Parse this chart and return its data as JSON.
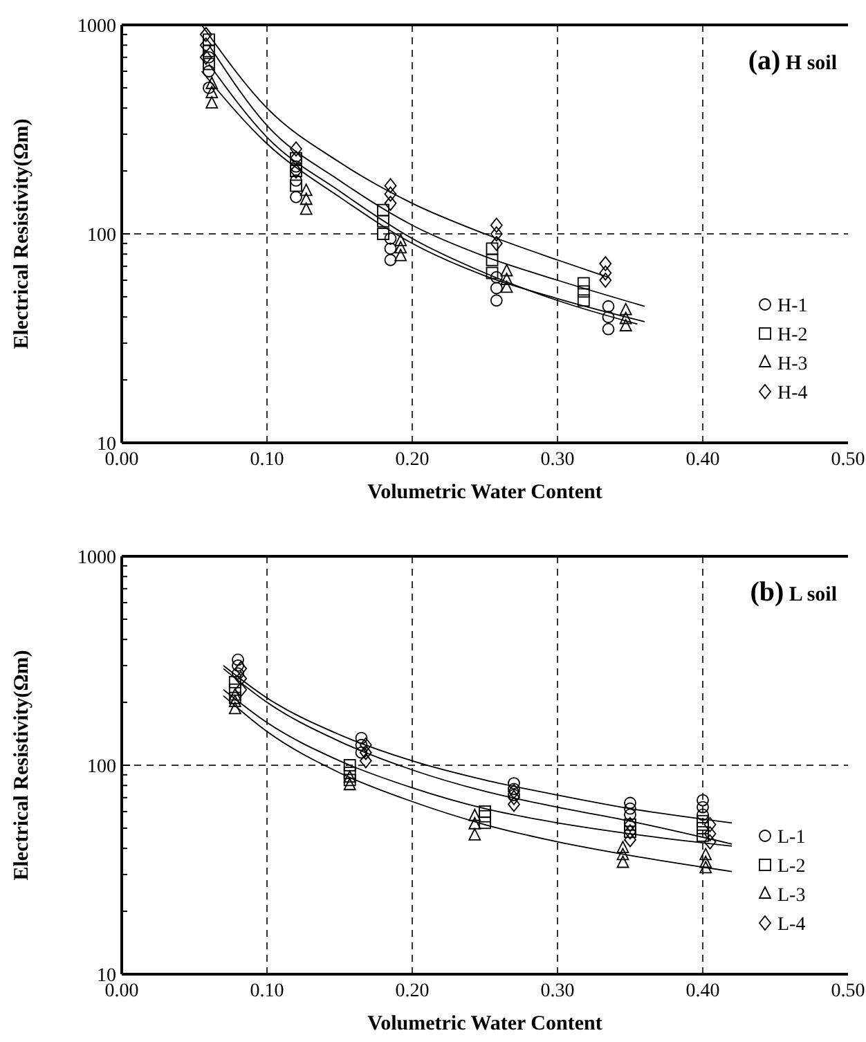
{
  "chart_data": [
    {
      "type": "scatter",
      "annotations": [
        "(a) H soil"
      ],
      "xlabel": "Volumetric Water Content",
      "ylabel": "Electrical Resistivity(Ωm)",
      "log": "y",
      "grid": true,
      "legend": "bottom right",
      "xlim": [
        0,
        0.5
      ],
      "xticks": [
        {
          "value": 0,
          "label": "0.00"
        },
        {
          "value": 0.1,
          "label": "0.10"
        },
        {
          "value": 0.2,
          "label": "0.20"
        },
        {
          "value": 0.3,
          "label": "0.30"
        },
        {
          "value": 0.4,
          "label": "0.40"
        },
        {
          "value": 0.5,
          "label": "0.50"
        }
      ],
      "ylim": [
        10,
        1000
      ],
      "yticks": [
        10,
        {
          "value": 20,
          "label": null
        },
        {
          "value": 30,
          "label": null
        },
        {
          "value": 40,
          "label": null
        },
        {
          "value": 50,
          "label": null
        },
        {
          "value": 60,
          "label": null
        },
        {
          "value": 70,
          "label": null
        },
        {
          "value": 80,
          "label": null
        },
        {
          "value": 90,
          "label": null
        },
        100,
        {
          "value": 200,
          "label": null
        },
        {
          "value": 300,
          "label": null
        },
        {
          "value": 400,
          "label": null
        },
        {
          "value": 500,
          "label": null
        },
        {
          "value": 600,
          "label": null
        },
        {
          "value": 700,
          "label": null
        },
        {
          "value": 800,
          "label": null
        },
        {
          "value": 900,
          "label": null
        },
        1000
      ],
      "series": [
        {
          "name": "H-1",
          "marker": "circle",
          "color": "#000000",
          "x": [
            0.06,
            0.06,
            0.06,
            0.12,
            0.12,
            0.12,
            0.185,
            0.185,
            0.185,
            0.258,
            0.258,
            0.258,
            0.335,
            0.335,
            0.335
          ],
          "values": [
            500,
            600,
            700,
            150,
            180,
            210,
            75,
            85,
            95,
            48,
            55,
            62,
            35,
            40,
            45
          ]
        },
        {
          "name": "H-2",
          "marker": "square",
          "color": "#000000",
          "x": [
            0.06,
            0.06,
            0.06,
            0.12,
            0.12,
            0.12,
            0.18,
            0.18,
            0.18,
            0.255,
            0.255,
            0.255,
            0.318,
            0.318,
            0.318
          ],
          "values": [
            650,
            750,
            850,
            170,
            200,
            230,
            100,
            115,
            130,
            65,
            75,
            85,
            48,
            53,
            58
          ]
        },
        {
          "name": "H-3",
          "marker": "triangle",
          "color": "#000000",
          "x": [
            0.062,
            0.062,
            0.062,
            0.127,
            0.127,
            0.127,
            0.192,
            0.192,
            0.192,
            0.265,
            0.265,
            0.265,
            0.347,
            0.347,
            0.347
          ],
          "values": [
            420,
            470,
            520,
            130,
            145,
            160,
            78,
            85,
            92,
            55,
            60,
            66,
            36,
            39,
            43
          ]
        },
        {
          "name": "H-4",
          "marker": "diamond",
          "color": "#000000",
          "x": [
            0.058,
            0.058,
            0.058,
            0.12,
            0.12,
            0.12,
            0.185,
            0.185,
            0.185,
            0.258,
            0.258,
            0.258,
            0.333,
            0.333,
            0.333
          ],
          "values": [
            700,
            800,
            900,
            200,
            230,
            255,
            140,
            155,
            170,
            90,
            100,
            110,
            60,
            65,
            72
          ]
        },
        {
          "type": "line",
          "color": "#000000",
          "x": [
            0.06,
            0.1,
            0.15,
            0.2,
            0.25,
            0.3,
            0.355
          ],
          "values": [
            650,
            290,
            160,
            95,
            65,
            48,
            37
          ]
        },
        {
          "type": "line",
          "color": "#000000",
          "x": [
            0.06,
            0.1,
            0.15,
            0.2,
            0.25,
            0.3,
            0.36
          ],
          "values": [
            800,
            330,
            180,
            110,
            78,
            60,
            45
          ]
        },
        {
          "type": "line",
          "color": "#000000",
          "x": [
            0.055,
            0.1,
            0.15,
            0.2,
            0.25,
            0.3,
            0.36
          ],
          "values": [
            600,
            270,
            150,
            90,
            63,
            49,
            38
          ]
        },
        {
          "type": "line",
          "color": "#000000",
          "x": [
            0.055,
            0.1,
            0.15,
            0.2,
            0.25,
            0.3,
            0.335
          ],
          "values": [
            1000,
            400,
            220,
            140,
            100,
            75,
            62
          ]
        }
      ]
    },
    {
      "type": "scatter",
      "annotations": [
        "(b) L soil"
      ],
      "xlabel": "Volumetric Water Content",
      "ylabel": "Electrical Resistivity(Ωm)",
      "log": "y",
      "grid": true,
      "legend": "bottom right",
      "xlim": [
        0,
        0.5
      ],
      "xticks": [
        {
          "value": 0,
          "label": "0.00"
        },
        {
          "value": 0.1,
          "label": "0.10"
        },
        {
          "value": 0.2,
          "label": "0.20"
        },
        {
          "value": 0.3,
          "label": "0.30"
        },
        {
          "value": 0.4,
          "label": "0.40"
        },
        {
          "value": 0.5,
          "label": "0.50"
        }
      ],
      "ylim": [
        10,
        1000
      ],
      "yticks": [
        10,
        {
          "value": 20,
          "label": null
        },
        {
          "value": 30,
          "label": null
        },
        {
          "value": 40,
          "label": null
        },
        {
          "value": 50,
          "label": null
        },
        {
          "value": 60,
          "label": null
        },
        {
          "value": 70,
          "label": null
        },
        {
          "value": 80,
          "label": null
        },
        {
          "value": 90,
          "label": null
        },
        100,
        {
          "value": 200,
          "label": null
        },
        {
          "value": 300,
          "label": null
        },
        {
          "value": 400,
          "label": null
        },
        {
          "value": 500,
          "label": null
        },
        {
          "value": 600,
          "label": null
        },
        {
          "value": 700,
          "label": null
        },
        {
          "value": 800,
          "label": null
        },
        {
          "value": 900,
          "label": null
        },
        1000
      ],
      "series": [
        {
          "name": "L-1",
          "marker": "circle",
          "color": "#000000",
          "x": [
            0.08,
            0.08,
            0.08,
            0.165,
            0.165,
            0.165,
            0.27,
            0.27,
            0.27,
            0.35,
            0.35,
            0.35,
            0.4,
            0.4,
            0.4
          ],
          "values": [
            275,
            300,
            320,
            115,
            125,
            135,
            72,
            77,
            82,
            58,
            62,
            66,
            58,
            63,
            68
          ]
        },
        {
          "name": "L-2",
          "marker": "square",
          "color": "#000000",
          "x": [
            0.078,
            0.078,
            0.078,
            0.157,
            0.157,
            0.157,
            0.25,
            0.25,
            0.25,
            0.35,
            0.35,
            0.4,
            0.4,
            0.4
          ],
          "values": [
            210,
            230,
            250,
            85,
            92,
            100,
            53,
            57,
            60,
            48,
            52,
            46,
            50,
            54
          ]
        },
        {
          "name": "L-3",
          "marker": "triangle",
          "color": "#000000",
          "x": [
            0.078,
            0.078,
            0.078,
            0.157,
            0.157,
            0.243,
            0.243,
            0.243,
            0.345,
            0.345,
            0.345,
            0.402,
            0.402,
            0.402
          ],
          "values": [
            185,
            200,
            215,
            80,
            87,
            46,
            52,
            57,
            34,
            37,
            40,
            32,
            34,
            37
          ]
        },
        {
          "name": "L-4",
          "marker": "diamond",
          "color": "#000000",
          "x": [
            0.082,
            0.082,
            0.082,
            0.168,
            0.168,
            0.168,
            0.27,
            0.27,
            0.27,
            0.35,
            0.35,
            0.35,
            0.405,
            0.405,
            0.405
          ],
          "values": [
            230,
            260,
            290,
            105,
            115,
            125,
            65,
            70,
            75,
            44,
            48,
            52,
            43,
            47,
            52
          ]
        },
        {
          "type": "line",
          "color": "#000000",
          "x": [
            0.07,
            0.1,
            0.15,
            0.2,
            0.25,
            0.3,
            0.35,
            0.42
          ],
          "values": [
            300,
            210,
            140,
            105,
            85,
            72,
            62,
            53
          ]
        },
        {
          "type": "line",
          "color": "#000000",
          "x": [
            0.07,
            0.1,
            0.15,
            0.2,
            0.25,
            0.3,
            0.35,
            0.42
          ],
          "values": [
            230,
            160,
            105,
            78,
            62,
            53,
            47,
            41
          ]
        },
        {
          "type": "line",
          "color": "#000000",
          "x": [
            0.07,
            0.1,
            0.15,
            0.2,
            0.25,
            0.3,
            0.35,
            0.42
          ],
          "values": [
            215,
            145,
            92,
            67,
            52,
            43,
            37,
            31
          ]
        },
        {
          "type": "line",
          "color": "#000000",
          "x": [
            0.07,
            0.1,
            0.15,
            0.2,
            0.25,
            0.3,
            0.35,
            0.42
          ],
          "values": [
            290,
            200,
            130,
            95,
            75,
            63,
            54,
            42
          ]
        }
      ]
    }
  ]
}
